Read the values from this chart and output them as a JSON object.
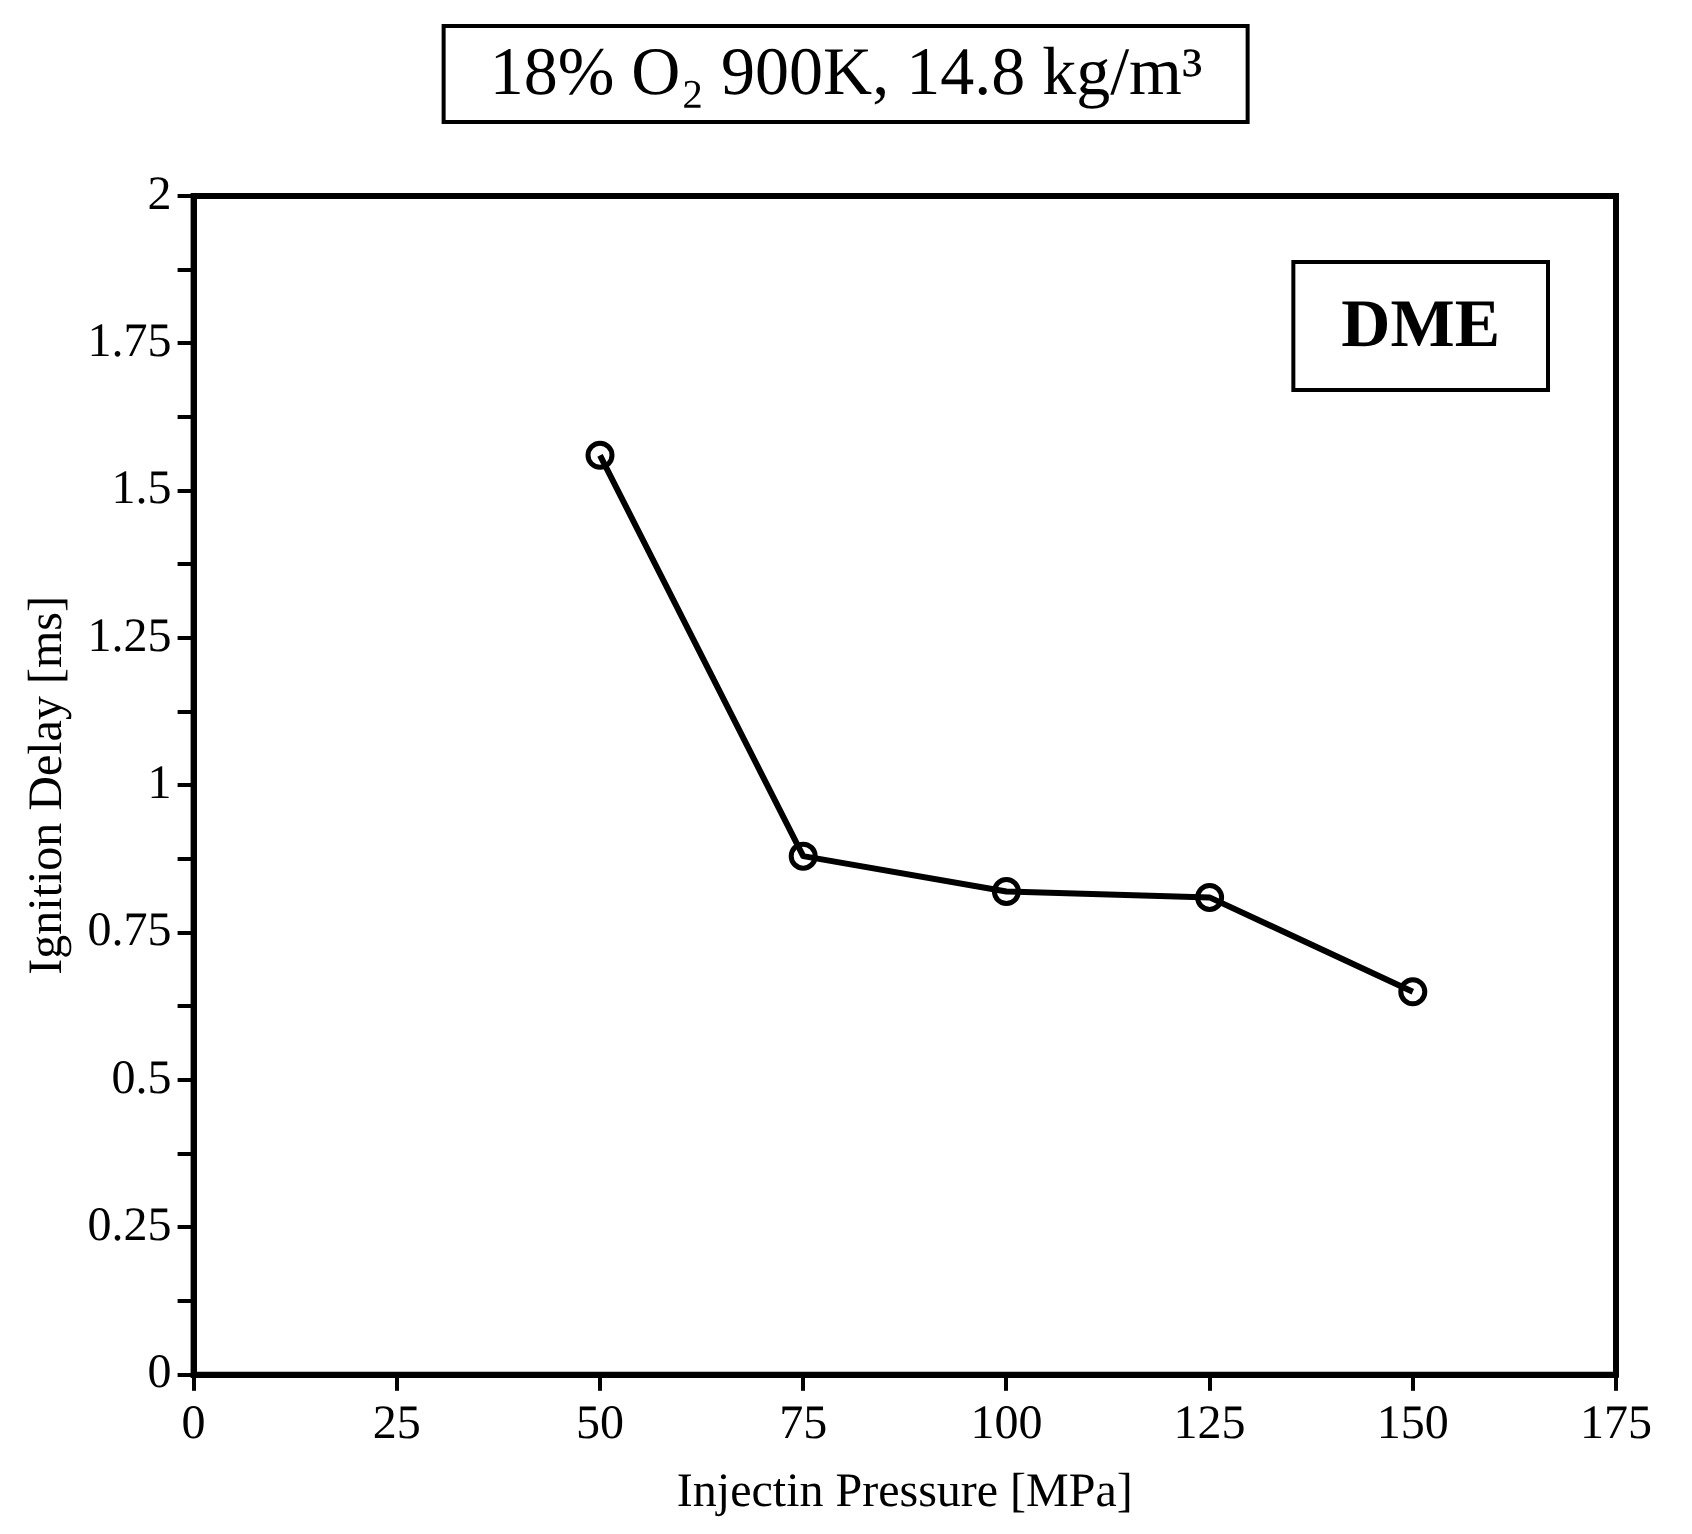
{
  "chart_data": {
    "type": "line",
    "title": "18% O₂ 900K, 14.8 kg/m³",
    "xlabel": "Injectin Pressure [MPa]",
    "ylabel": "Ignition Delay [ms]",
    "annotations": [
      "DME"
    ],
    "x": [
      50,
      75,
      100,
      125,
      150
    ],
    "series": [
      {
        "color": "#000000",
        "values": [
          1.56,
          0.88,
          0.82,
          0.81,
          0.65
        ]
      }
    ],
    "xlim": [
      0,
      175
    ],
    "xticks": [
      0,
      25,
      50,
      75,
      100,
      125,
      150,
      175
    ],
    "ylim": [
      0,
      2
    ],
    "yticks": [
      0,
      {
        "value": 0.125,
        "label": null
      },
      0.25,
      {
        "value": 0.375,
        "label": null
      },
      0.5,
      {
        "value": 0.625,
        "label": null
      },
      0.75,
      {
        "value": 0.875,
        "label": null
      },
      1,
      {
        "value": 1.125,
        "label": null
      },
      1.25,
      {
        "value": 1.375,
        "label": null
      },
      1.5,
      {
        "value": 1.625,
        "label": null
      },
      1.75,
      {
        "value": 1.875,
        "label": null
      },
      2
    ],
    "grid": false,
    "legend": false,
    "marker": "circle",
    "line_style": "solid"
  }
}
